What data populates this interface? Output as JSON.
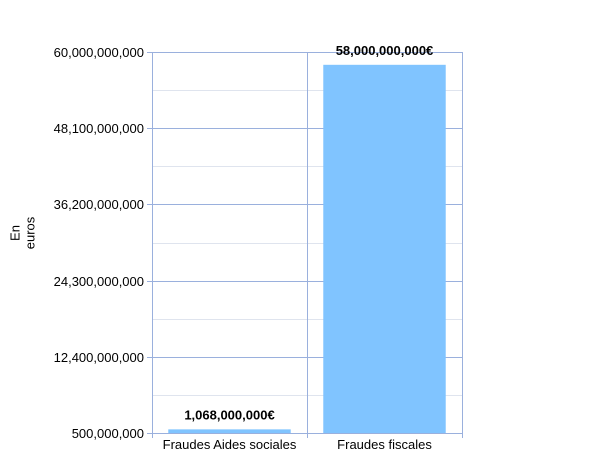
{
  "chart_data": {
    "type": "bar",
    "title": "",
    "xlabel": "",
    "ylabel_lines": [
      "En",
      "euros"
    ],
    "categories": [
      "Fraudes Aides sociales",
      "Fraudes fiscales"
    ],
    "values": [
      1068000000,
      58000000000
    ],
    "data_labels": [
      "1,068,000,000€",
      "58,000,000,000€"
    ],
    "yticks": [
      500000000,
      12400000000,
      24300000000,
      36200000000,
      48100000000,
      60000000000
    ],
    "ytick_labels": [
      "500,000,000",
      "12,400,000,000",
      "24,300,000,000",
      "36,200,000,000",
      "48,100,000,000",
      "60,000,000,000"
    ],
    "ylim": [
      500000000,
      60000000000
    ],
    "grid": true,
    "legend": "none",
    "colors": {
      "bar": "#80c4ff",
      "grid_major": "#9ab0dd",
      "grid_minor": "#dfe4ee",
      "axis": "#9ab0dd"
    }
  }
}
